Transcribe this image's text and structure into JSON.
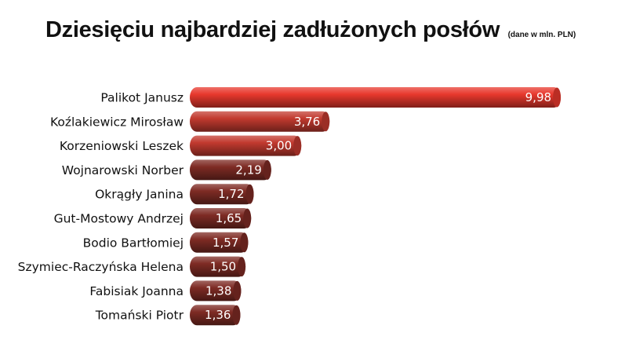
{
  "chart_data": {
    "type": "bar",
    "orientation": "horizontal",
    "title": "Dziesięciu najbardziej zadłużonych posłów",
    "subtitle": "(dane w mln. PLN)",
    "categories": [
      "Palikot Janusz",
      "Koźlakiewicz Mirosław",
      "Korzeniowski Leszek",
      "Wojnarowski Norber",
      "Okrągły Janina",
      "Gut-Mostowy Andrzej",
      "Bodio Bartłomiej",
      "Szymiec-Raczyńska Helena",
      "Fabisiak Joanna",
      "Tomański Piotr"
    ],
    "values": [
      9.98,
      3.76,
      3.0,
      2.19,
      1.72,
      1.65,
      1.57,
      1.5,
      1.38,
      1.36
    ],
    "value_labels": [
      "9,98",
      "3,76",
      "3,00",
      "2,19",
      "1,72",
      "1,65",
      "1,57",
      "1,50",
      "1,38",
      "1,36"
    ],
    "xlim": [
      0,
      10
    ],
    "grid": false,
    "legend": "none",
    "colors": {
      "high": "#e8382d",
      "mid": "#c23a2f",
      "low": "#7e2b24"
    }
  }
}
